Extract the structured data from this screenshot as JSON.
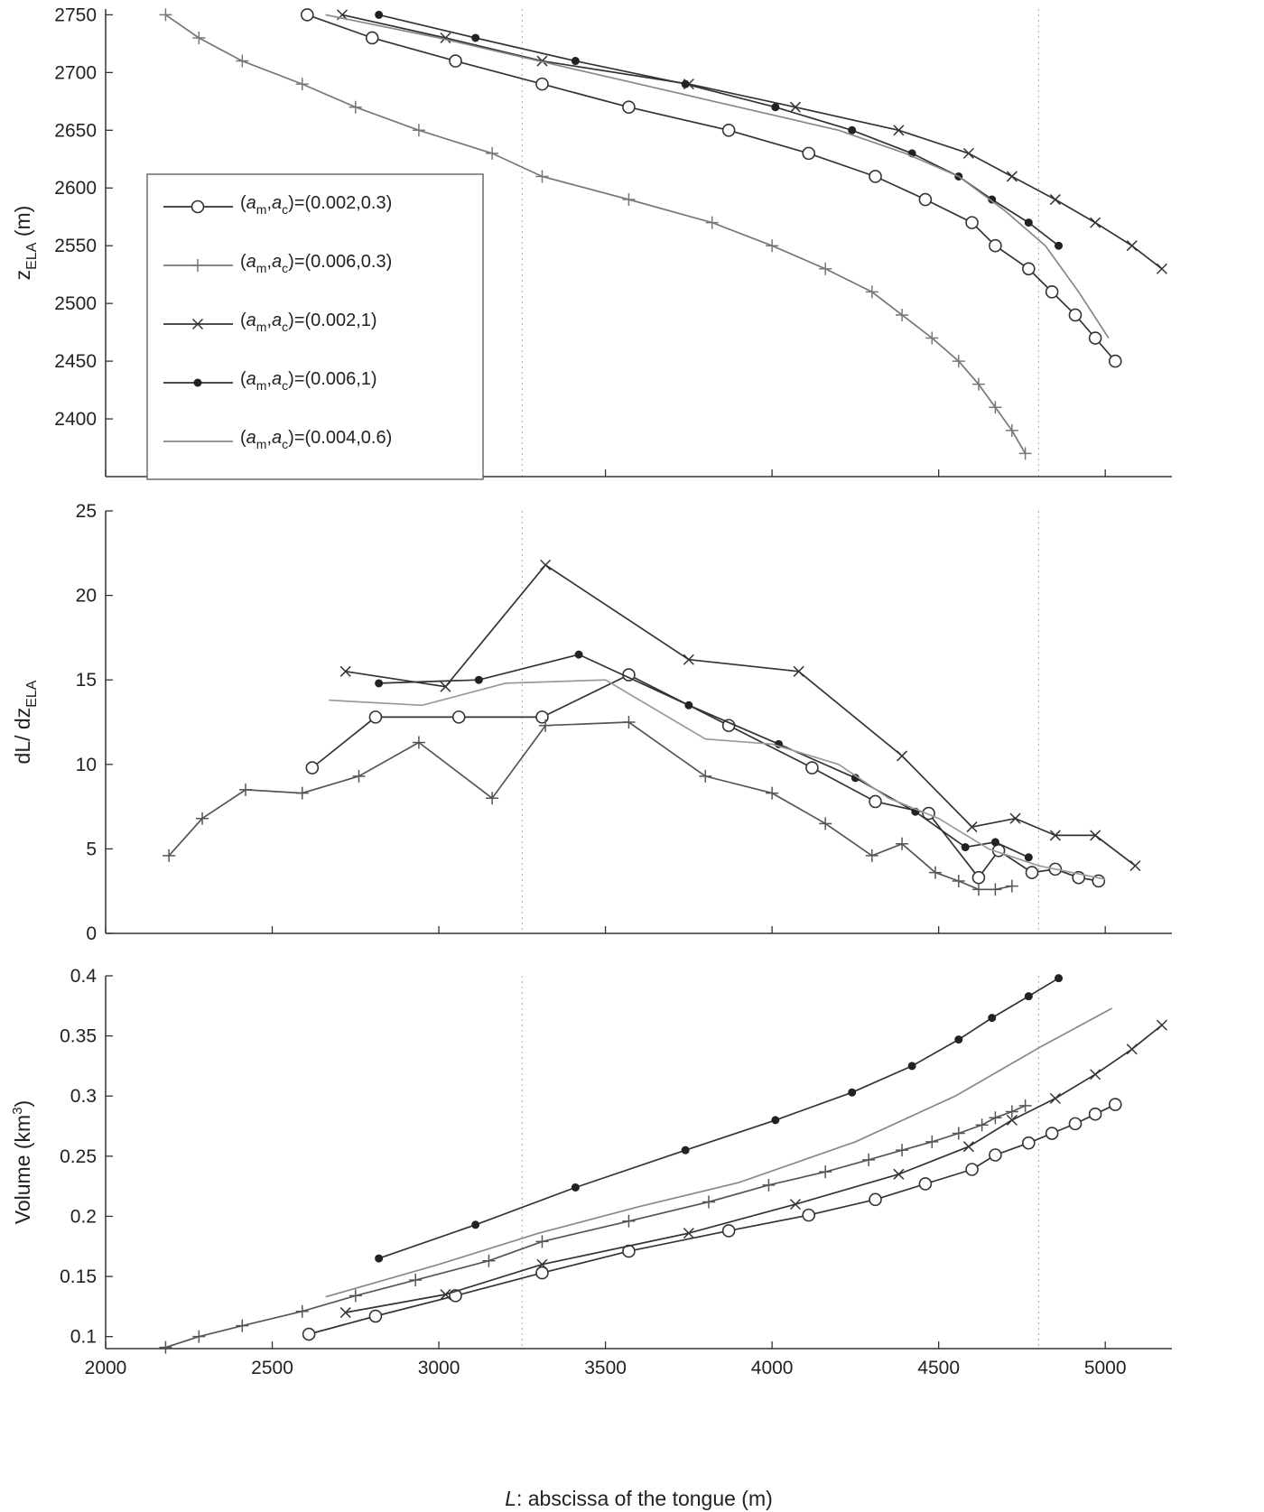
{
  "chart_data": [
    {
      "type": "line",
      "ylabel": "z",
      "ylabel_sub": "ELA",
      "ylabel_unit": "(m)",
      "xlim": [
        2000,
        5200
      ],
      "ylim": [
        2350,
        2755
      ],
      "yticks": [
        2400,
        2450,
        2500,
        2550,
        2600,
        2650,
        2700,
        2750
      ],
      "xticks": [
        2000,
        2500,
        3000,
        3500,
        4000,
        4500,
        5000
      ],
      "show_xticklabels": false,
      "grid": false,
      "vlines": [
        3250,
        4800
      ],
      "legend": {
        "placement": "upper-left"
      },
      "series": [
        {
          "name": "(0.002,0.3)",
          "marker": "circle",
          "color": "#333333",
          "x": [
            2605,
            2800,
            3050,
            3310,
            3570,
            3870,
            4110,
            4310,
            4460,
            4600,
            4670,
            4770,
            4840,
            4910,
            4970,
            5030
          ],
          "y": [
            2750,
            2730,
            2710,
            2690,
            2670,
            2650,
            2630,
            2610,
            2590,
            2570,
            2550,
            2530,
            2510,
            2490,
            2470,
            2450
          ]
        },
        {
          "name": "(0.006,0.3)",
          "marker": "plus",
          "color": "#777777",
          "x": [
            2180,
            2280,
            2410,
            2590,
            2750,
            2940,
            3160,
            3310,
            3570,
            3820,
            4000,
            4160,
            4300,
            4390,
            4480,
            4560,
            4620,
            4670,
            4720,
            4760
          ],
          "y": [
            2750,
            2730,
            2710,
            2690,
            2670,
            2650,
            2630,
            2610,
            2590,
            2570,
            2550,
            2530,
            2510,
            2490,
            2470,
            2450,
            2430,
            2410,
            2390,
            2370
          ]
        },
        {
          "name": "(0.002,1)",
          "marker": "x",
          "color": "#333333",
          "x": [
            2710,
            3020,
            3310,
            3750,
            4070,
            4380,
            4590,
            4720,
            4850,
            4970,
            5080,
            5170
          ],
          "y": [
            2750,
            2730,
            2710,
            2690,
            2670,
            2650,
            2630,
            2610,
            2590,
            2570,
            2550,
            2530
          ]
        },
        {
          "name": "(0.006,1)",
          "marker": "star",
          "color": "#333333",
          "x": [
            2820,
            3110,
            3410,
            3740,
            4010,
            4240,
            4420,
            4560,
            4660,
            4770,
            4860
          ],
          "y": [
            2750,
            2730,
            2710,
            2690,
            2670,
            2650,
            2630,
            2610,
            2590,
            2570,
            2550
          ]
        },
        {
          "name": "(0.004,0.6)",
          "marker": "none",
          "color": "#888888",
          "x": [
            2660,
            3000,
            3300,
            3600,
            3900,
            4200,
            4400,
            4560,
            4700,
            4820,
            4920,
            5010
          ],
          "y": [
            2750,
            2730,
            2710,
            2690,
            2670,
            2650,
            2630,
            2610,
            2580,
            2550,
            2510,
            2470
          ]
        }
      ]
    },
    {
      "type": "line",
      "ylabel": "dL/ dz",
      "ylabel_sub": "ELA",
      "xlim": [
        2000,
        5200
      ],
      "ylim": [
        0,
        25
      ],
      "yticks": [
        0,
        5,
        10,
        15,
        20,
        25
      ],
      "xticks": [
        2000,
        2500,
        3000,
        3500,
        4000,
        4500,
        5000
      ],
      "show_xticklabels": false,
      "grid": false,
      "vlines": [
        3250,
        4800
      ],
      "series": [
        {
          "name": "(0.002,0.3)",
          "marker": "circle",
          "color": "#333333",
          "x": [
            2620,
            2810,
            3060,
            3310,
            3570,
            3870,
            4120,
            4310,
            4470,
            4620,
            4680,
            4780,
            4850,
            4920,
            4980
          ],
          "y": [
            9.8,
            12.8,
            12.8,
            12.8,
            15.3,
            12.3,
            9.8,
            7.8,
            7.1,
            3.3,
            4.9,
            3.6,
            3.8,
            3.3,
            3.1
          ]
        },
        {
          "name": "(0.006,0.3)",
          "marker": "plus",
          "color": "#555555",
          "x": [
            2190,
            2290,
            2420,
            2590,
            2760,
            2940,
            3160,
            3320,
            3570,
            3800,
            4000,
            4160,
            4300,
            4390,
            4490,
            4560,
            4620,
            4670,
            4720
          ],
          "y": [
            4.6,
            6.8,
            8.5,
            8.3,
            9.3,
            11.3,
            8.0,
            12.3,
            12.5,
            9.3,
            8.3,
            6.5,
            4.6,
            5.3,
            3.6,
            3.1,
            2.6,
            2.6,
            2.8
          ]
        },
        {
          "name": "(0.002,1)",
          "marker": "x",
          "color": "#333333",
          "x": [
            2720,
            3020,
            3320,
            3750,
            4080,
            4390,
            4600,
            4730,
            4850,
            4970,
            5090
          ],
          "y": [
            15.5,
            14.6,
            21.8,
            16.2,
            15.5,
            10.5,
            6.3,
            6.8,
            5.8,
            5.8,
            4.0
          ]
        },
        {
          "name": "(0.006,1)",
          "marker": "star",
          "color": "#333333",
          "x": [
            2820,
            3120,
            3420,
            3750,
            4020,
            4250,
            4430,
            4580,
            4670,
            4770
          ],
          "y": [
            14.8,
            15.0,
            16.5,
            13.5,
            11.2,
            9.2,
            7.2,
            5.1,
            5.4,
            4.5
          ]
        },
        {
          "name": "(0.004,0.6)",
          "marker": "none",
          "color": "#999999",
          "x": [
            2670,
            2950,
            3200,
            3500,
            3800,
            4000,
            4200,
            4350,
            4500,
            4650,
            4800,
            5000
          ],
          "y": [
            13.8,
            13.5,
            14.8,
            15.0,
            11.5,
            11.2,
            10.0,
            8.0,
            6.8,
            5.0,
            4.0,
            3.2
          ]
        }
      ]
    },
    {
      "type": "line",
      "ylabel": "Volume (km",
      "ylabel_sup": "3",
      "ylabel_end": ")",
      "xlabel_italic": "L",
      "xlabel": ": abscissa of the tongue (m)",
      "xlim": [
        2000,
        5200
      ],
      "ylim": [
        0.09,
        0.4
      ],
      "yticks": [
        0.1,
        0.15,
        0.2,
        0.25,
        0.3,
        0.35,
        0.4
      ],
      "yticklabels": [
        "0.1",
        "0.15",
        "0.2",
        "0.25",
        "0.3",
        "0.35",
        "0.4"
      ],
      "xticks": [
        2000,
        2500,
        3000,
        3500,
        4000,
        4500,
        5000
      ],
      "xticklabels": [
        "2000",
        "2500",
        "3000",
        "3500",
        "4000",
        "4500",
        "5000"
      ],
      "show_xticklabels": true,
      "grid": false,
      "vlines": [
        3250,
        4800
      ],
      "series": [
        {
          "name": "(0.002,0.3)",
          "marker": "circle",
          "color": "#333333",
          "x": [
            2610,
            2810,
            3050,
            3310,
            3570,
            3870,
            4110,
            4310,
            4460,
            4600,
            4670,
            4770,
            4840,
            4910,
            4970,
            5030
          ],
          "y": [
            0.102,
            0.117,
            0.134,
            0.153,
            0.171,
            0.188,
            0.201,
            0.214,
            0.227,
            0.239,
            0.251,
            0.261,
            0.269,
            0.277,
            0.285,
            0.293
          ]
        },
        {
          "name": "(0.006,0.3)",
          "marker": "plus",
          "color": "#555555",
          "x": [
            2180,
            2280,
            2410,
            2590,
            2750,
            2930,
            3150,
            3310,
            3570,
            3810,
            3990,
            4160,
            4290,
            4390,
            4480,
            4560,
            4630,
            4670,
            4720,
            4760
          ],
          "y": [
            0.091,
            0.1,
            0.109,
            0.121,
            0.134,
            0.147,
            0.163,
            0.179,
            0.196,
            0.212,
            0.226,
            0.237,
            0.247,
            0.255,
            0.262,
            0.269,
            0.276,
            0.282,
            0.287,
            0.292
          ]
        },
        {
          "name": "(0.002,1)",
          "marker": "x",
          "color": "#333333",
          "x": [
            2720,
            3020,
            3310,
            3750,
            4070,
            4380,
            4590,
            4720,
            4850,
            4970,
            5080,
            5170
          ],
          "y": [
            0.12,
            0.135,
            0.16,
            0.186,
            0.21,
            0.235,
            0.258,
            0.28,
            0.298,
            0.318,
            0.339,
            0.359
          ]
        },
        {
          "name": "(0.006,1)",
          "marker": "star",
          "color": "#333333",
          "x": [
            2820,
            3110,
            3410,
            3740,
            4010,
            4240,
            4420,
            4560,
            4660,
            4770,
            4860
          ],
          "y": [
            0.165,
            0.193,
            0.224,
            0.255,
            0.28,
            0.303,
            0.325,
            0.347,
            0.365,
            0.383,
            0.398
          ]
        },
        {
          "name": "(0.004,0.6)",
          "marker": "none",
          "color": "#888888",
          "x": [
            2660,
            3000,
            3300,
            3600,
            3900,
            4250,
            4550,
            4800,
            5020
          ],
          "y": [
            0.133,
            0.16,
            0.186,
            0.208,
            0.228,
            0.262,
            0.3,
            0.34,
            0.373
          ]
        }
      ]
    }
  ]
}
